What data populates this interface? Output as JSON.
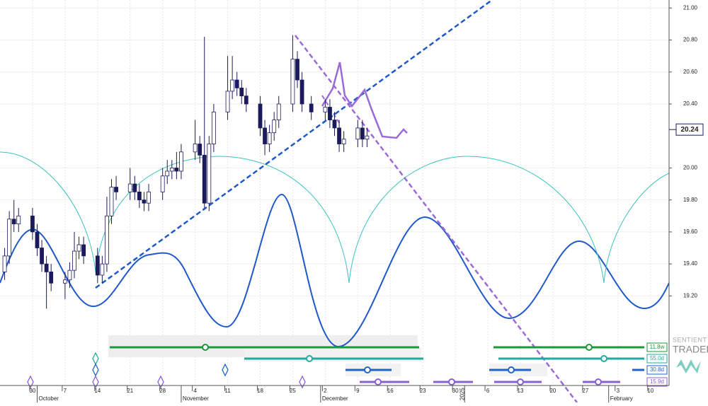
{
  "chart_data": {
    "type": "candlestick",
    "x": [
      "2024-09-24",
      "2024-09-25",
      "2024-09-26",
      "2024-09-27",
      "2024-09-30",
      "2024-10-01",
      "2024-10-02",
      "2024-10-03",
      "2024-10-04",
      "2024-10-07",
      "2024-10-08",
      "2024-10-09",
      "2024-10-10",
      "2024-10-11",
      "2024-10-14",
      "2024-10-15",
      "2024-10-16",
      "2024-10-17",
      "2024-10-18",
      "2024-10-21",
      "2024-10-22",
      "2024-10-23",
      "2024-10-24",
      "2024-10-25",
      "2024-10-28",
      "2024-10-29",
      "2024-10-30",
      "2024-10-31",
      "2024-11-01",
      "2024-11-04",
      "2024-11-05",
      "2024-11-06",
      "2024-11-07",
      "2024-11-08",
      "2024-11-11",
      "2024-11-12",
      "2024-11-13",
      "2024-11-14",
      "2024-11-15",
      "2024-11-18",
      "2024-11-19",
      "2024-11-20",
      "2024-11-21",
      "2024-11-22",
      "2024-11-25",
      "2024-11-26",
      "2024-11-27",
      "2024-11-29",
      "2024-12-02",
      "2024-12-03",
      "2024-12-04",
      "2024-12-05",
      "2024-12-06",
      "2024-12-09",
      "2024-12-10",
      "2024-12-11"
    ],
    "open": [
      19.35,
      19.45,
      19.68,
      19.65,
      19.7,
      19.6,
      19.5,
      19.4,
      19.35,
      19.28,
      19.3,
      19.36,
      19.48,
      19.52,
      19.45,
      19.33,
      19.4,
      19.7,
      19.88,
      19.85,
      19.9,
      19.85,
      19.8,
      19.78,
      19.85,
      19.95,
      19.98,
      20.0,
      19.98,
      20.1,
      20.15,
      20.08,
      19.78,
      20.15,
      20.35,
      20.48,
      20.55,
      20.5,
      20.45,
      20.4,
      20.25,
      20.15,
      20.22,
      20.3,
      20.4,
      20.68,
      20.55,
      20.4,
      20.35,
      20.38,
      20.3,
      20.25,
      20.15,
      20.18,
      20.25,
      20.18
    ],
    "high": [
      19.5,
      19.73,
      19.8,
      19.75,
      19.75,
      19.65,
      19.55,
      19.45,
      19.4,
      19.35,
      19.41,
      19.6,
      19.57,
      19.57,
      19.5,
      19.45,
      19.82,
      19.93,
      19.95,
      20.0,
      19.95,
      19.9,
      19.85,
      19.9,
      20.0,
      20.05,
      20.05,
      20.1,
      20.15,
      20.3,
      20.2,
      20.82,
      20.2,
      20.4,
      20.7,
      20.7,
      20.6,
      20.55,
      20.5,
      20.45,
      20.3,
      20.27,
      20.35,
      20.45,
      20.83,
      20.73,
      20.6,
      20.45,
      20.43,
      20.43,
      20.35,
      20.3,
      20.23,
      20.3,
      20.3,
      20.25
    ],
    "low": [
      19.3,
      19.4,
      19.6,
      19.6,
      19.55,
      19.45,
      19.35,
      19.12,
      19.23,
      19.18,
      19.25,
      19.31,
      19.43,
      19.4,
      19.28,
      19.28,
      19.35,
      19.65,
      19.8,
      19.8,
      19.8,
      19.75,
      19.73,
      19.73,
      19.8,
      19.9,
      19.93,
      19.93,
      19.93,
      20.05,
      20.03,
      19.75,
      19.73,
      20.1,
      20.3,
      20.43,
      20.45,
      20.4,
      20.35,
      20.2,
      20.08,
      20.1,
      20.17,
      20.25,
      20.35,
      20.5,
      20.35,
      20.3,
      20.3,
      20.25,
      20.2,
      20.1,
      20.1,
      20.13,
      20.13,
      20.13
    ],
    "close": [
      19.45,
      19.68,
      19.65,
      19.7,
      19.6,
      19.5,
      19.4,
      19.35,
      19.28,
      19.3,
      19.36,
      19.48,
      19.52,
      19.45,
      19.33,
      19.4,
      19.7,
      19.88,
      19.85,
      19.9,
      19.85,
      19.8,
      19.78,
      19.85,
      19.95,
      19.98,
      20.0,
      19.98,
      20.1,
      20.15,
      20.08,
      19.78,
      20.15,
      20.35,
      20.48,
      20.55,
      20.5,
      20.45,
      20.4,
      20.25,
      20.15,
      20.22,
      20.3,
      20.4,
      20.68,
      20.55,
      20.4,
      20.35,
      20.38,
      20.3,
      20.25,
      20.15,
      20.18,
      20.25,
      20.18,
      20.2
    ],
    "up_color": "#ffffff",
    "down_color": "#1b1b5c",
    "xlim": [
      "2024-09-23",
      "2025-02-14"
    ],
    "xticks": [
      {
        "value": "2024-09-30",
        "label": "30"
      },
      {
        "value": "2024-10-07",
        "label": "7"
      },
      {
        "value": "2024-10-14",
        "label": "14"
      },
      {
        "value": "2024-10-21",
        "label": "21"
      },
      {
        "value": "2024-10-28",
        "label": "28"
      },
      {
        "value": "2024-11-04",
        "label": "4"
      },
      {
        "value": "2024-11-11",
        "label": "11"
      },
      {
        "value": "2024-11-18",
        "label": "18"
      },
      {
        "value": "2024-11-25",
        "label": "25"
      },
      {
        "value": "2024-12-02",
        "label": "2"
      },
      {
        "value": "2024-12-09",
        "label": "9"
      },
      {
        "value": "2024-12-16",
        "label": "16"
      },
      {
        "value": "2024-12-23",
        "label": "23"
      },
      {
        "value": "2024-12-30",
        "label": "30"
      },
      {
        "value": "2025-01-06",
        "label": "6"
      },
      {
        "value": "2025-01-13",
        "label": "13"
      },
      {
        "value": "2025-01-20",
        "label": "20"
      },
      {
        "value": "2025-01-27",
        "label": "27"
      },
      {
        "value": "2025-02-03",
        "label": "3"
      },
      {
        "value": "2025-02-10",
        "label": "10"
      }
    ],
    "month_labels": [
      {
        "value": "2024-10-01",
        "label": "October"
      },
      {
        "value": "2024-11-01",
        "label": "November"
      },
      {
        "value": "2024-12-01",
        "label": "December"
      },
      {
        "value": "2025-01-01",
        "label": "2025"
      },
      {
        "value": "2025-02-01",
        "label": "February"
      }
    ],
    "ylim": [
      18.64,
      21.05
    ],
    "yticks": [
      {
        "value": 21,
        "label": "21.00"
      },
      {
        "value": 20.8,
        "label": "20.80"
      },
      {
        "value": 20.6,
        "label": "20.60"
      },
      {
        "value": 20.4,
        "label": "20.40"
      },
      {
        "value": 20,
        "label": "20.00"
      },
      {
        "value": 19.8,
        "label": "19.80"
      },
      {
        "value": 19.6,
        "label": "19.60"
      },
      {
        "value": 19.4,
        "label": "19.40"
      },
      {
        "value": 19.2,
        "label": "19.20"
      }
    ],
    "last_price": 20.24,
    "grid": true,
    "cycles": [
      {
        "label": "11.8w",
        "color": "#1a9a3a"
      },
      {
        "label": "55.0d",
        "color": "#20aaa0"
      },
      {
        "label": "30.8d",
        "color": "#1f64c8"
      },
      {
        "label": "15.9d",
        "color": "#8a5fd0"
      }
    ],
    "logo": [
      "SENTIENT",
      "TRADER"
    ]
  }
}
